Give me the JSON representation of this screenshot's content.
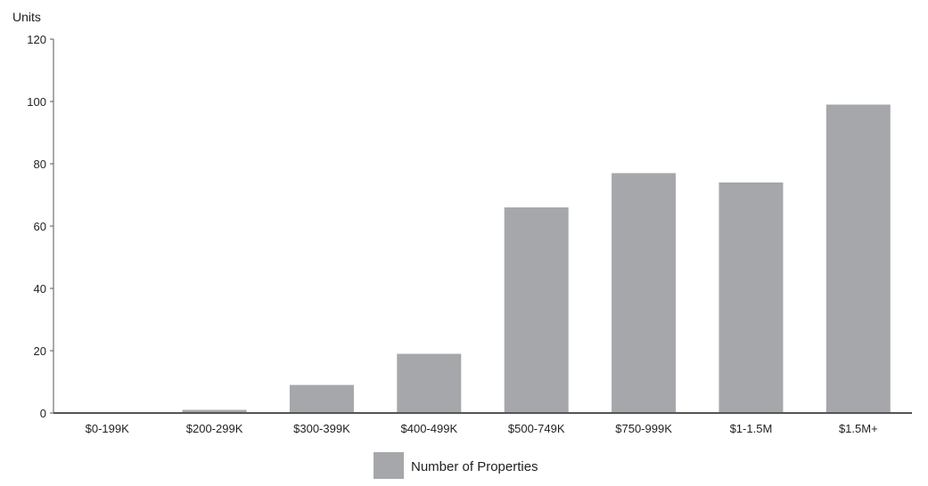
{
  "chart_data": {
    "type": "bar",
    "categories": [
      "$0-199K",
      "$200-299K",
      "$300-399K",
      "$400-499K",
      "$500-749K",
      "$750-999K",
      "$1-1.5M",
      "$1.5M+"
    ],
    "series": [
      {
        "name": "Number of Properties",
        "values": [
          0,
          1,
          9,
          19,
          66,
          77,
          74,
          99
        ],
        "color": "#a6a7aa"
      }
    ],
    "ylabel": "Units",
    "ylim": [
      0,
      120
    ],
    "yticks": [
      0,
      20,
      40,
      60,
      80,
      100,
      120
    ],
    "grid": false,
    "legend_position": "bottom-center",
    "axis_color": "#555555"
  }
}
